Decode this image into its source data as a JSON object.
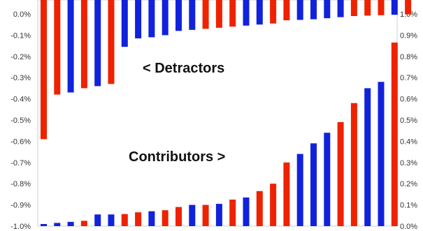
{
  "chart_data": {
    "type": "bar",
    "colors": {
      "red": "#ee2200",
      "blue": "#1122dd"
    },
    "grid": false,
    "axes": {
      "left": {
        "ylim": [
          -1.0,
          0.0
        ],
        "ticks": [
          "0.0%",
          "-0.1%",
          "-0.2%",
          "-0.3%",
          "-0.4%",
          "-0.5%",
          "-0.6%",
          "-0.7%",
          "-0.8%",
          "-0.9%",
          "-1.0%"
        ]
      },
      "right": {
        "ylim": [
          0.0,
          1.0
        ],
        "ticks": [
          "1.0%",
          "0.9%",
          "0.8%",
          "0.7%",
          "0.6%",
          "0.5%",
          "0.4%",
          "0.3%",
          "0.2%",
          "0.1%",
          "0.0%"
        ]
      }
    },
    "annotations": {
      "detractors": "< Detractors",
      "contributors": "Contributors >"
    },
    "series": [
      {
        "axis": "left",
        "values": [
          -0.59,
          -0.38,
          -0.37,
          -0.35,
          -0.34,
          -0.33,
          -0.155,
          -0.115,
          -0.11,
          -0.1,
          -0.08,
          -0.075,
          -0.07,
          -0.065,
          -0.06,
          -0.055,
          -0.05,
          -0.045,
          -0.03,
          -0.028,
          -0.025,
          -0.02,
          -0.015,
          -0.01,
          -0.008,
          -0.006,
          -0.004,
          -0.002
        ],
        "colors": [
          "red",
          "red",
          "blue",
          "red",
          "blue",
          "red",
          "blue",
          "blue",
          "blue",
          "blue",
          "blue",
          "blue",
          "red",
          "red",
          "red",
          "blue",
          "blue",
          "red",
          "red",
          "blue",
          "blue",
          "blue",
          "blue",
          "red",
          "red",
          "red",
          "blue",
          "red"
        ]
      },
      {
        "axis": "right",
        "values": [
          0.01,
          0.015,
          0.02,
          0.025,
          0.055,
          0.055,
          0.057,
          0.065,
          0.07,
          0.075,
          0.09,
          0.1,
          0.1,
          0.105,
          0.125,
          0.135,
          0.165,
          0.2,
          0.3,
          0.34,
          0.39,
          0.44,
          0.49,
          0.58,
          0.65,
          0.68,
          0.865
        ],
        "colors": [
          "blue",
          "blue",
          "blue",
          "red",
          "blue",
          "blue",
          "red",
          "red",
          "blue",
          "red",
          "red",
          "blue",
          "red",
          "blue",
          "red",
          "blue",
          "red",
          "red",
          "red",
          "blue",
          "blue",
          "blue",
          "red",
          "red",
          "blue",
          "blue",
          "red"
        ]
      }
    ]
  }
}
